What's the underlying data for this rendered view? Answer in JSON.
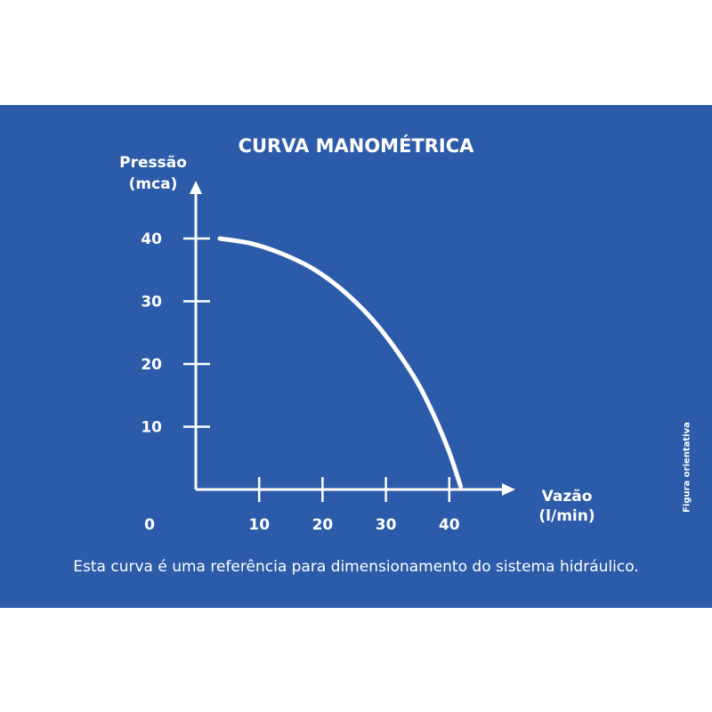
{
  "chart_data": {
    "type": "line",
    "title": "CURVA MANOMÉTRICA",
    "ylabel": [
      "Pressão",
      "(mca)"
    ],
    "xlabel": [
      "Vazão",
      "(l/min)"
    ],
    "xlim": [
      0,
      40
    ],
    "ylim": [
      0,
      40
    ],
    "x_ticks": [
      10,
      20,
      30,
      40
    ],
    "y_ticks": [
      10,
      20,
      30,
      40
    ],
    "origin_label": "0",
    "grid": false,
    "series": [
      {
        "x": [
          0,
          5,
          10,
          15,
          20,
          25,
          30,
          33,
          36,
          38
        ],
        "y": [
          40,
          39.2,
          37.5,
          35.0,
          31.2,
          26.0,
          19.0,
          13.5,
          6.5,
          0.5
        ]
      }
    ],
    "colors": {
      "background": "#2c5ba9",
      "foreground": "#ffffff"
    }
  },
  "caption": "Esta curva é uma referência para dimensionamento do sistema hidráulico.",
  "side_note": "Figura orientativa"
}
